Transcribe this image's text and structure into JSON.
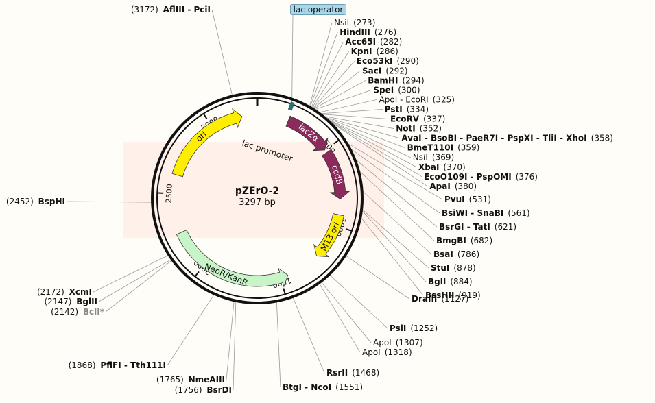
{
  "map": {
    "name": "pZErO-2",
    "size_text": "3297 bp",
    "total_bp": 3297
  },
  "lac_operator_label": "lac operator",
  "lac_promoter_label": "lac promoter",
  "ticks": [
    {
      "bp": 500,
      "label": "500"
    },
    {
      "bp": 1000,
      "label": "1000"
    },
    {
      "bp": 1500,
      "label": "1500"
    },
    {
      "bp": 2000,
      "label": "2000"
    },
    {
      "bp": 2500,
      "label": "2500"
    },
    {
      "bp": 3000,
      "label": "3000"
    }
  ],
  "features": [
    {
      "name": "lacZα",
      "label": "lacZα",
      "start": 200,
      "end": 500,
      "color": "#8b2a5b",
      "text_color": "#ffffff"
    },
    {
      "name": "ccdB",
      "label": "ccdB",
      "start": 520,
      "end": 830,
      "color": "#8b2a5b",
      "text_color": "#ffffff"
    },
    {
      "name": "M13 ori",
      "label": "M13 ori",
      "start": 930,
      "end": 1230,
      "color": "#ffee00",
      "text_color": "#111111"
    },
    {
      "name": "NeoR/KanR",
      "label": "NeoR/KanR",
      "start": 2250,
      "end": 1450,
      "color": "#c8f5c8",
      "text_color": "#111111"
    },
    {
      "name": "ori",
      "label": "ori",
      "start": 2620,
      "end": 3200,
      "color": "#ffee00",
      "text_color": "#111111"
    }
  ],
  "sites_right": [
    {
      "name": "NsiI",
      "pos": "(273)",
      "bp": 273,
      "bold": false
    },
    {
      "name": "HindIII",
      "pos": "(276)",
      "bp": 276,
      "bold": true
    },
    {
      "name": "Acc65I",
      "pos": "(282)",
      "bp": 282,
      "bold": true
    },
    {
      "name": "KpnI",
      "pos": "(286)",
      "bp": 286,
      "bold": true
    },
    {
      "name": "Eco53kI",
      "pos": "(290)",
      "bp": 290,
      "bold": true
    },
    {
      "name": "SacI",
      "pos": "(292)",
      "bp": 292,
      "bold": true
    },
    {
      "name": "BamHI",
      "pos": "(294)",
      "bp": 294,
      "bold": true
    },
    {
      "name": "SpeI",
      "pos": "(300)",
      "bp": 300,
      "bold": true
    },
    {
      "name": "ApoI - EcoRI",
      "pos": "(325)",
      "bp": 325,
      "bold": false
    },
    {
      "name": "PstI",
      "pos": "(334)",
      "bp": 334,
      "bold": true
    },
    {
      "name": "EcoRV",
      "pos": "(337)",
      "bp": 337,
      "bold": true
    },
    {
      "name": "NotI",
      "pos": "(352)",
      "bp": 352,
      "bold": true
    },
    {
      "name": "AvaI - BsoBI - PaeR7I - PspXI - TliI - XhoI",
      "pos": "(358)",
      "bp": 358,
      "bold": true
    },
    {
      "name": "BmeT110I",
      "pos": "(359)",
      "bp": 359,
      "bold": true
    },
    {
      "name": "NsiI",
      "pos": "(369)",
      "bp": 369,
      "bold": false
    },
    {
      "name": "XbaI",
      "pos": "(370)",
      "bp": 370,
      "bold": true
    },
    {
      "name": "EcoO109I - PspOMI",
      "pos": "(376)",
      "bp": 376,
      "bold": true
    },
    {
      "name": "ApaI",
      "pos": "(380)",
      "bp": 380,
      "bold": true
    },
    {
      "name": "PvuI",
      "pos": "(531)",
      "bp": 531,
      "bold": true
    },
    {
      "name": "BsiWI - SnaBI",
      "pos": "(561)",
      "bp": 561,
      "bold": true
    },
    {
      "name": "BsrGI - TatI",
      "pos": "(621)",
      "bp": 621,
      "bold": true
    },
    {
      "name": "BmgBI",
      "pos": "(682)",
      "bp": 682,
      "bold": true
    },
    {
      "name": "BsaI",
      "pos": "(786)",
      "bp": 786,
      "bold": true
    },
    {
      "name": "StuI",
      "pos": "(878)",
      "bp": 878,
      "bold": true
    },
    {
      "name": "BglI",
      "pos": "(884)",
      "bp": 884,
      "bold": true
    },
    {
      "name": "BssHII",
      "pos": "(919)",
      "bp": 919,
      "bold": true
    },
    {
      "name": "DraIII",
      "pos": "(1127)",
      "bp": 1127,
      "bold": true
    },
    {
      "name": "PsiI",
      "pos": "(1252)",
      "bp": 1252,
      "bold": true
    },
    {
      "name": "ApoI",
      "pos": "(1307)",
      "bp": 1307,
      "bold": false
    },
    {
      "name": "ApoI",
      "pos": "(1318)",
      "bp": 1318,
      "bold": false
    },
    {
      "name": "RsrII",
      "pos": "(1468)",
      "bp": 1468,
      "bold": true
    },
    {
      "name": "BtgI - NcoI",
      "pos": "(1551)",
      "bp": 1551,
      "bold": true
    }
  ],
  "sites_left": [
    {
      "name": "BsrDI",
      "pos": "(1756)",
      "bp": 1756,
      "bold": true
    },
    {
      "name": "NmeAIII",
      "pos": "(1765)",
      "bp": 1765,
      "bold": true
    },
    {
      "name": "PflFI - Tth111I",
      "pos": "(1868)",
      "bp": 1868,
      "bold": true
    },
    {
      "name": "BclI*",
      "pos": "(2142)",
      "bp": 2142,
      "bold": true,
      "grey": true
    },
    {
      "name": "BglII",
      "pos": "(2147)",
      "bp": 2147,
      "bold": true
    },
    {
      "name": "XcmI",
      "pos": "(2172)",
      "bp": 2172,
      "bold": true
    },
    {
      "name": "BspHI",
      "pos": "(2452)",
      "bp": 2452,
      "bold": true
    },
    {
      "name": "AflIII - PciI",
      "pos": "(3172)",
      "bp": 3172,
      "bold": true
    }
  ]
}
